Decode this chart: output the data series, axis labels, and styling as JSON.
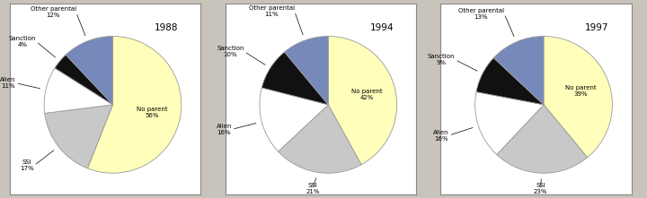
{
  "charts": [
    {
      "year": "1988",
      "slices": [
        56,
        17,
        11,
        4,
        12
      ],
      "colors": [
        "#ffffbb",
        "#c8c8c8",
        "#ffffff",
        "#111111",
        "#7788bb"
      ]
    },
    {
      "year": "1994",
      "slices": [
        42,
        21,
        16,
        10,
        11
      ],
      "colors": [
        "#ffffbb",
        "#c8c8c8",
        "#ffffff",
        "#111111",
        "#7788bb"
      ]
    },
    {
      "year": "1997",
      "slices": [
        39,
        23,
        16,
        9,
        13
      ],
      "colors": [
        "#ffffbb",
        "#c8c8c8",
        "#ffffff",
        "#111111",
        "#7788bb"
      ]
    }
  ],
  "label_fontsize": 5.0,
  "year_fontsize": 7.5,
  "figure_bg": "#c8c4bc",
  "panel_bg": "#ffffff",
  "pie_edge_color": "#999999",
  "slice_names": [
    "No parent",
    "SSI",
    "Alien",
    "Sanction",
    "Other parental"
  ]
}
